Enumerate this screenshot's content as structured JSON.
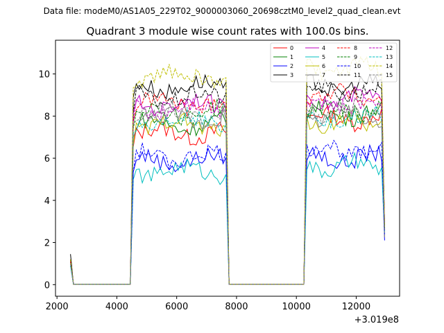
{
  "chart_data": {
    "type": "line",
    "suptitle": "Data file: modeM0/AS1A05_229T02_9000003060_20698cztM0_level2_quad_clean.evt",
    "title": "Quadrant 3 module wise count rates with 100.0s bins.",
    "x_offset_label": "+3.019e8",
    "xlim": [
      1950,
      13450
    ],
    "ylim": [
      -0.55,
      11.6
    ],
    "xticks": [
      2000,
      4000,
      6000,
      8000,
      10000,
      12000
    ],
    "xtick_labels": [
      "2000",
      "4000",
      "6000",
      "8000",
      "10000",
      "12000"
    ],
    "yticks": [
      0,
      2,
      4,
      6,
      8,
      10
    ],
    "ytick_labels": [
      "0",
      "2",
      "4",
      "6",
      "8",
      "10"
    ],
    "legend_position": "upper right",
    "legend_columns": 4,
    "segments": [
      {
        "start": 2450,
        "end": 2550
      },
      {
        "start": 2550,
        "end": 4450,
        "zero": true
      },
      {
        "start": 4450,
        "end": 7750
      },
      {
        "start": 7750,
        "end": 10250,
        "zero": true
      },
      {
        "start": 10250,
        "end": 12950
      }
    ],
    "series": [
      {
        "name": "0",
        "color": "#ff0000",
        "style": "solid",
        "start": 1.2,
        "levelA": 7.2,
        "levelB": 7.9
      },
      {
        "name": "1",
        "color": "#008000",
        "style": "solid",
        "start": 1.1,
        "levelA": 7.6,
        "levelB": 8.1
      },
      {
        "name": "2",
        "color": "#0000ff",
        "style": "solid",
        "start": 1.0,
        "levelA": 5.9,
        "levelB": 6.0
      },
      {
        "name": "3",
        "color": "#000000",
        "style": "solid",
        "start": 1.45,
        "levelA": 9.4,
        "levelB": 9.4
      },
      {
        "name": "4",
        "color": "#bf00bf",
        "style": "solid",
        "start": 1.1,
        "levelA": 8.6,
        "levelB": 8.8
      },
      {
        "name": "5",
        "color": "#00bfbf",
        "style": "solid",
        "start": 0.9,
        "levelA": 5.4,
        "levelB": 5.6
      },
      {
        "name": "6",
        "color": "#bfbf00",
        "style": "solid",
        "start": 1.0,
        "levelA": 7.6,
        "levelB": 7.7
      },
      {
        "name": "7",
        "color": "#808080",
        "style": "solid",
        "start": 1.0,
        "levelA": 7.9,
        "levelB": 8.0
      },
      {
        "name": "8",
        "color": "#ff0000",
        "style": "dashed",
        "start": 1.1,
        "levelA": 8.6,
        "levelB": 9.0
      },
      {
        "name": "9",
        "color": "#008000",
        "style": "dashed",
        "start": 1.0,
        "levelA": 8.2,
        "levelB": 8.3
      },
      {
        "name": "10",
        "color": "#0000ff",
        "style": "dashed",
        "start": 0.9,
        "levelA": 6.1,
        "levelB": 6.4
      },
      {
        "name": "11",
        "color": "#000000",
        "style": "dashed",
        "start": 1.2,
        "levelA": 8.9,
        "levelB": 9.2
      },
      {
        "name": "12",
        "color": "#bf00bf",
        "style": "dashed",
        "start": 1.0,
        "levelA": 8.4,
        "levelB": 8.6
      },
      {
        "name": "13",
        "color": "#00bfbf",
        "style": "dashed",
        "start": 0.9,
        "levelA": 7.8,
        "levelB": 7.9
      },
      {
        "name": "14",
        "color": "#bfbf00",
        "style": "dashed",
        "start": 1.2,
        "levelA": 9.9,
        "levelB": 10.2
      },
      {
        "name": "15",
        "color": "#808080",
        "style": "dashed",
        "start": 1.0,
        "levelA": 8.1,
        "levelB": 8.2
      }
    ]
  }
}
